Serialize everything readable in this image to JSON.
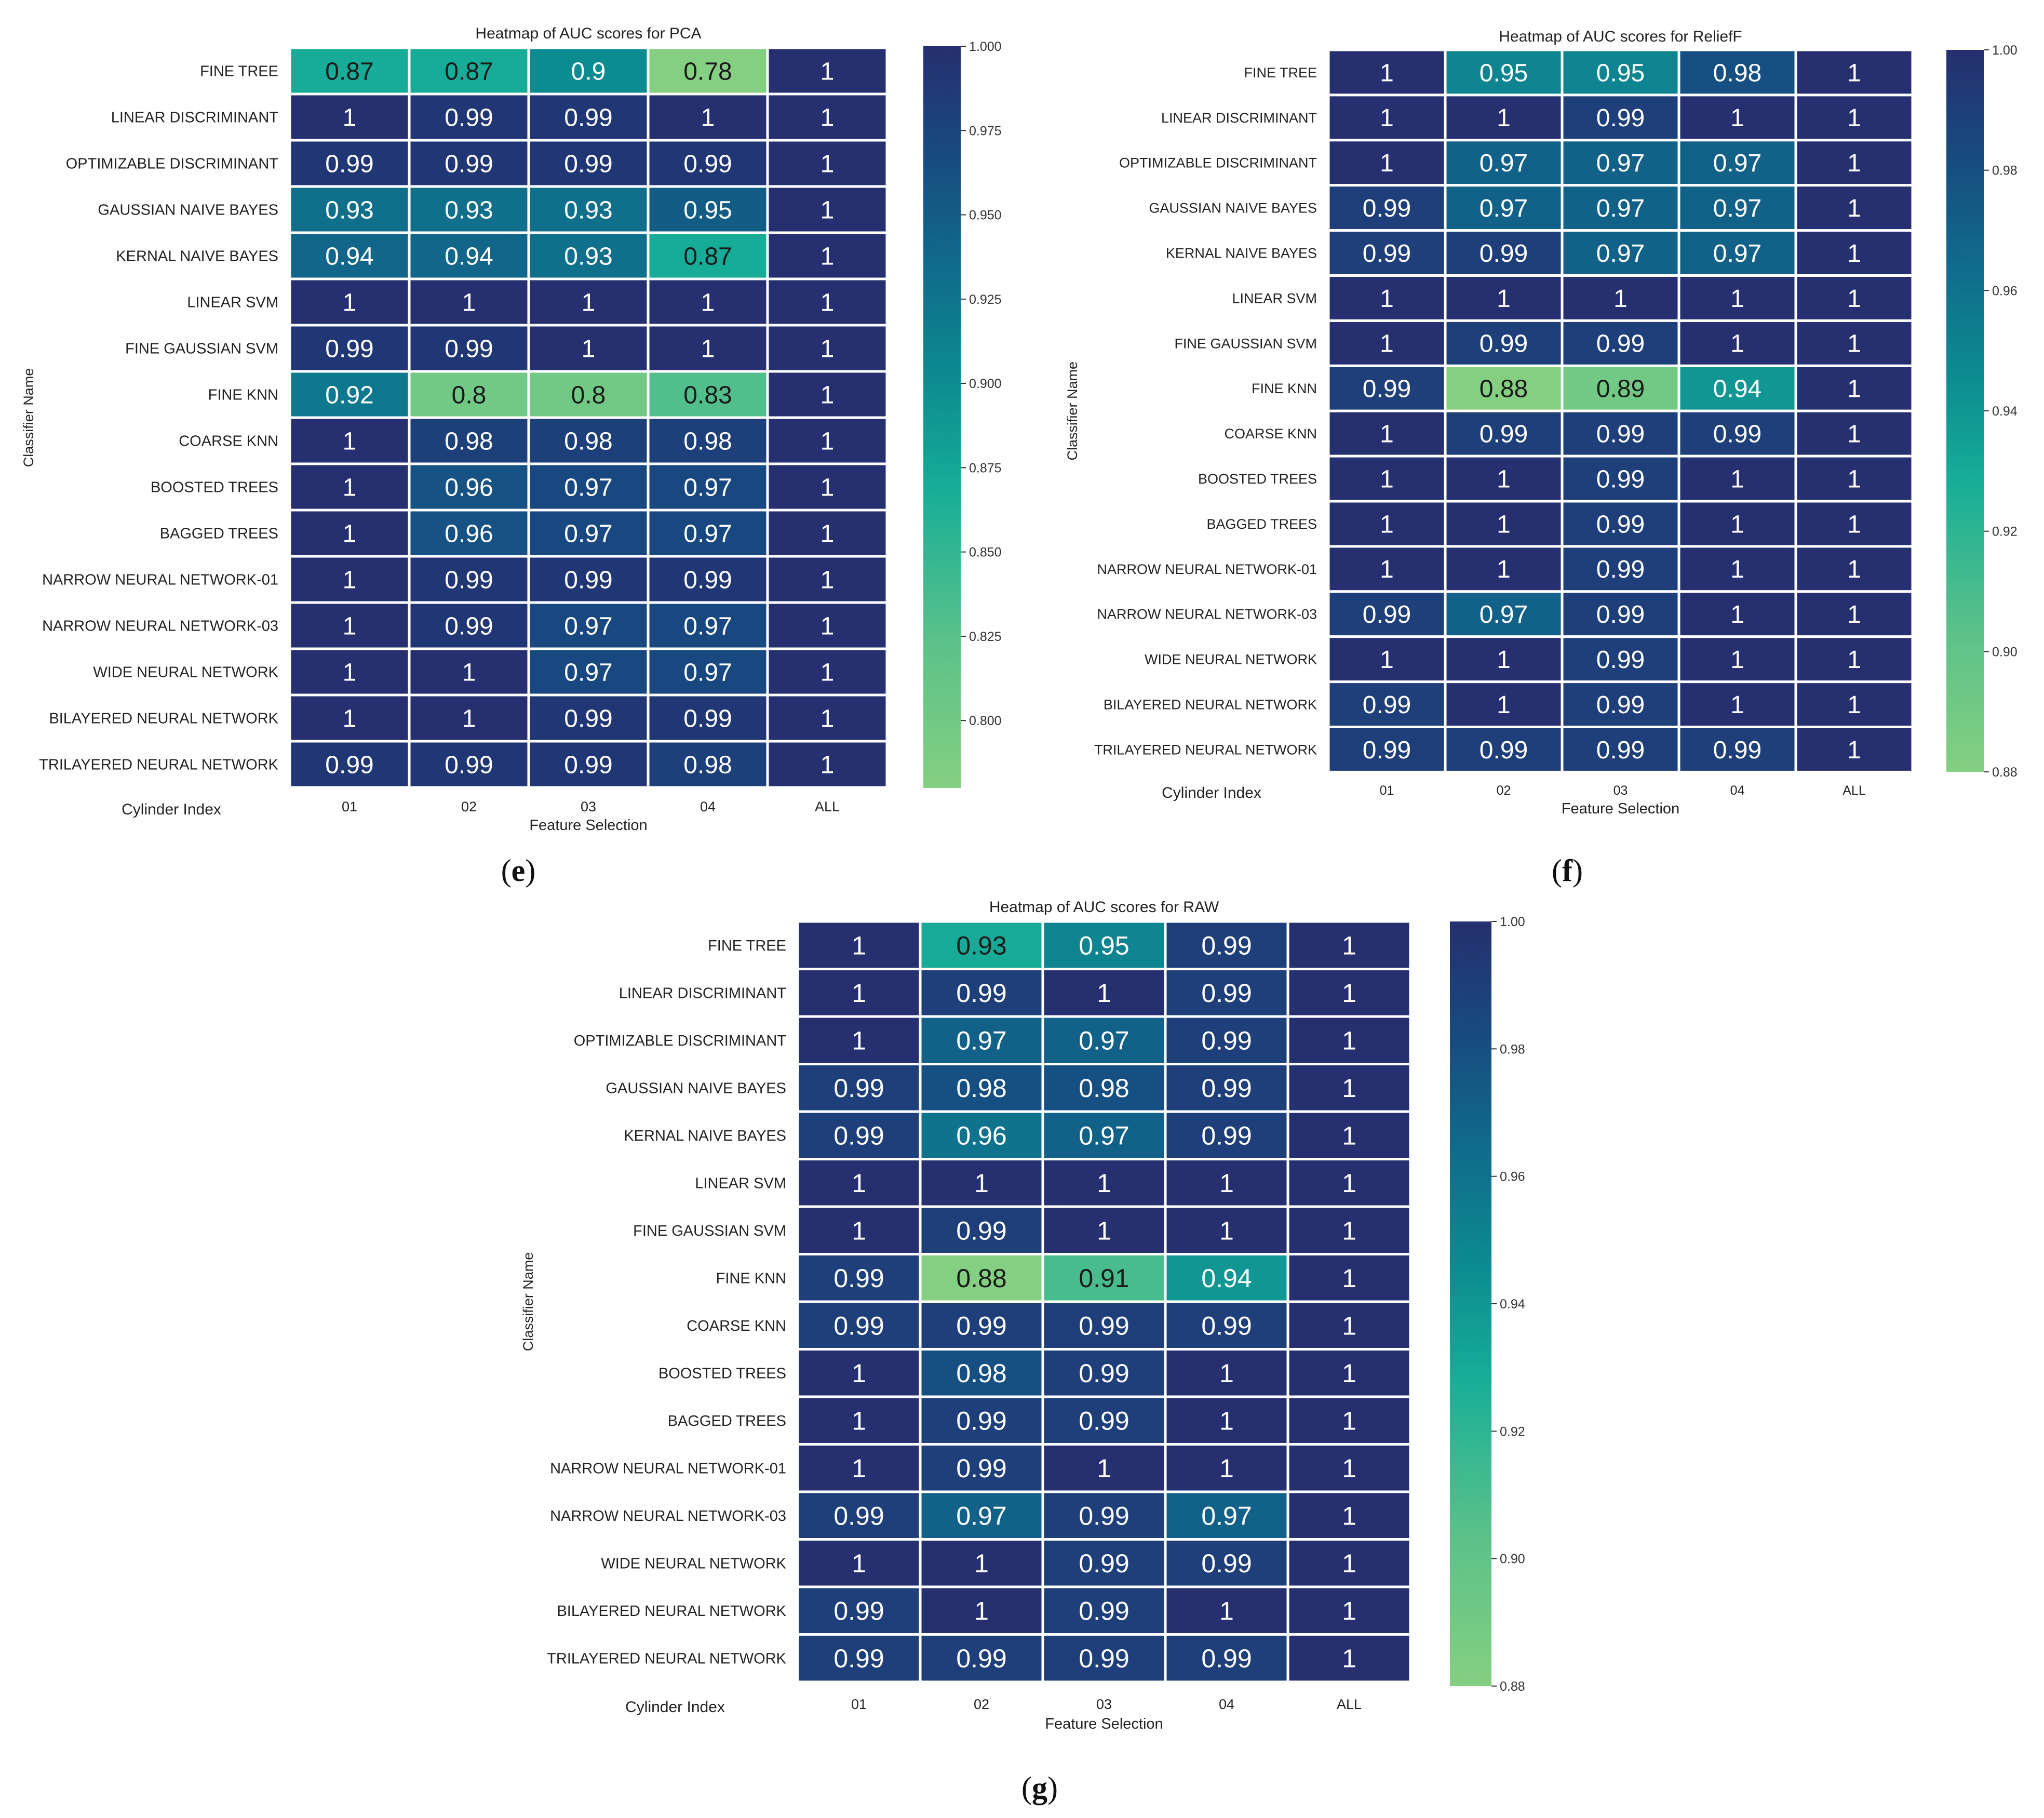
{
  "figure": {
    "panel_labels": [
      "(e)",
      "(f)",
      "(g)"
    ]
  },
  "chart_data": [
    {
      "type": "heatmap",
      "panel": "(e)",
      "title": "Heatmap of AUC scores for PCA",
      "xlabel": "Feature Selection",
      "ylabel": "Classifier Name",
      "corner_label": "Cylinder Index",
      "x_categories": [
        "01",
        "02",
        "03",
        "04",
        "ALL"
      ],
      "y_categories": [
        "FINE TREE",
        "LINEAR DISCRIMINANT",
        "OPTIMIZABLE DISCRIMINANT",
        "GAUSSIAN NAIVE BAYES",
        "KERNAL NAIVE BAYES",
        "LINEAR SVM",
        "FINE GAUSSIAN SVM",
        "FINE KNN",
        "COARSE KNN",
        "BOOSTED TREES",
        "BAGGED TREES",
        "NARROW NEURAL NETWORK-01",
        "NARROW NEURAL NETWORK-03",
        "WIDE NEURAL NETWORK",
        "BILAYERED NEURAL NETWORK",
        "TRILAYERED NEURAL NETWORK"
      ],
      "values": [
        [
          0.87,
          0.87,
          0.9,
          0.78,
          1
        ],
        [
          1,
          0.99,
          0.99,
          1,
          1
        ],
        [
          0.99,
          0.99,
          0.99,
          0.99,
          1
        ],
        [
          0.93,
          0.93,
          0.93,
          0.95,
          1
        ],
        [
          0.94,
          0.94,
          0.93,
          0.87,
          1
        ],
        [
          1,
          1,
          1,
          1,
          1
        ],
        [
          0.99,
          0.99,
          1,
          1,
          1
        ],
        [
          0.92,
          0.8,
          0.8,
          0.83,
          1
        ],
        [
          1,
          0.98,
          0.98,
          0.98,
          1
        ],
        [
          1,
          0.96,
          0.97,
          0.97,
          1
        ],
        [
          1,
          0.96,
          0.97,
          0.97,
          1
        ],
        [
          1,
          0.99,
          0.99,
          0.99,
          1
        ],
        [
          1,
          0.99,
          0.97,
          0.97,
          1
        ],
        [
          1,
          1,
          0.97,
          0.97,
          1
        ],
        [
          1,
          1,
          0.99,
          0.99,
          1
        ],
        [
          0.99,
          0.99,
          0.99,
          0.98,
          1
        ]
      ],
      "cell_labels": [
        [
          "0.87",
          "0.87",
          "0.9",
          "0.78",
          "1"
        ],
        [
          "1",
          "0.99",
          "0.99",
          "1",
          "1"
        ],
        [
          "0.99",
          "0.99",
          "0.99",
          "0.99",
          "1"
        ],
        [
          "0.93",
          "0.93",
          "0.93",
          "0.95",
          "1"
        ],
        [
          "0.94",
          "0.94",
          "0.93",
          "0.87",
          "1"
        ],
        [
          "1",
          "1",
          "1",
          "1",
          "1"
        ],
        [
          "0.99",
          "0.99",
          "1",
          "1",
          "1"
        ],
        [
          "0.92",
          "0.8",
          "0.8",
          "0.83",
          "1"
        ],
        [
          "1",
          "0.98",
          "0.98",
          "0.98",
          "1"
        ],
        [
          "1",
          "0.96",
          "0.97",
          "0.97",
          "1"
        ],
        [
          "1",
          "0.96",
          "0.97",
          "0.97",
          "1"
        ],
        [
          "1",
          "0.99",
          "0.99",
          "0.99",
          "1"
        ],
        [
          "1",
          "0.99",
          "0.97",
          "0.97",
          "1"
        ],
        [
          "1",
          "1",
          "0.97",
          "0.97",
          "1"
        ],
        [
          "1",
          "1",
          "0.99",
          "0.99",
          "1"
        ],
        [
          "0.99",
          "0.99",
          "0.99",
          "0.98",
          "1"
        ]
      ],
      "colorbar": {
        "min": 0.78,
        "max": 1.0,
        "ticks": [
          1.0,
          0.975,
          0.95,
          0.925,
          0.9,
          0.875,
          0.85,
          0.825,
          0.8
        ],
        "tick_labels": [
          "1.000",
          "0.975",
          "0.950",
          "0.925",
          "0.900",
          "0.875",
          "0.850",
          "0.825",
          "0.800"
        ]
      }
    },
    {
      "type": "heatmap",
      "panel": "(f)",
      "title": "Heatmap of AUC scores for ReliefF",
      "xlabel": "Feature Selection",
      "ylabel": "Classifier Name",
      "corner_label": "Cylinder Index",
      "x_categories": [
        "01",
        "02",
        "03",
        "04",
        "ALL"
      ],
      "y_categories": [
        "FINE TREE",
        "LINEAR DISCRIMINANT",
        "OPTIMIZABLE DISCRIMINANT",
        "GAUSSIAN NAIVE BAYES",
        "KERNAL NAIVE BAYES",
        "LINEAR SVM",
        "FINE GAUSSIAN SVM",
        "FINE KNN",
        "COARSE KNN",
        "BOOSTED TREES",
        "BAGGED TREES",
        "NARROW NEURAL NETWORK-01",
        "NARROW NEURAL NETWORK-03",
        "WIDE NEURAL NETWORK",
        "BILAYERED NEURAL NETWORK",
        "TRILAYERED NEURAL NETWORK"
      ],
      "values": [
        [
          1,
          0.95,
          0.95,
          0.98,
          1
        ],
        [
          1,
          1,
          0.99,
          1,
          1
        ],
        [
          1,
          0.97,
          0.97,
          0.97,
          1
        ],
        [
          0.99,
          0.97,
          0.97,
          0.97,
          1
        ],
        [
          0.99,
          0.99,
          0.97,
          0.97,
          1
        ],
        [
          1,
          1,
          1,
          1,
          1
        ],
        [
          1,
          0.99,
          0.99,
          1,
          1
        ],
        [
          0.99,
          0.88,
          0.89,
          0.94,
          1
        ],
        [
          1,
          0.99,
          0.99,
          0.99,
          1
        ],
        [
          1,
          1,
          0.99,
          1,
          1
        ],
        [
          1,
          1,
          0.99,
          1,
          1
        ],
        [
          1,
          1,
          0.99,
          1,
          1
        ],
        [
          0.99,
          0.97,
          0.99,
          1,
          1
        ],
        [
          1,
          1,
          0.99,
          1,
          1
        ],
        [
          0.99,
          1,
          0.99,
          1,
          1
        ],
        [
          0.99,
          0.99,
          0.99,
          0.99,
          1
        ]
      ],
      "cell_labels": [
        [
          "1",
          "0.95",
          "0.95",
          "0.98",
          "1"
        ],
        [
          "1",
          "1",
          "0.99",
          "1",
          "1"
        ],
        [
          "1",
          "0.97",
          "0.97",
          "0.97",
          "1"
        ],
        [
          "0.99",
          "0.97",
          "0.97",
          "0.97",
          "1"
        ],
        [
          "0.99",
          "0.99",
          "0.97",
          "0.97",
          "1"
        ],
        [
          "1",
          "1",
          "1",
          "1",
          "1"
        ],
        [
          "1",
          "0.99",
          "0.99",
          "1",
          "1"
        ],
        [
          "0.99",
          "0.88",
          "0.89",
          "0.94",
          "1"
        ],
        [
          "1",
          "0.99",
          "0.99",
          "0.99",
          "1"
        ],
        [
          "1",
          "1",
          "0.99",
          "1",
          "1"
        ],
        [
          "1",
          "1",
          "0.99",
          "1",
          "1"
        ],
        [
          "1",
          "1",
          "0.99",
          "1",
          "1"
        ],
        [
          "0.99",
          "0.97",
          "0.99",
          "1",
          "1"
        ],
        [
          "1",
          "1",
          "0.99",
          "1",
          "1"
        ],
        [
          "0.99",
          "1",
          "0.99",
          "1",
          "1"
        ],
        [
          "0.99",
          "0.99",
          "0.99",
          "0.99",
          "1"
        ]
      ],
      "colorbar": {
        "min": 0.88,
        "max": 1.0,
        "ticks": [
          1.0,
          0.98,
          0.96,
          0.94,
          0.92,
          0.9,
          0.88
        ],
        "tick_labels": [
          "1.00",
          "0.98",
          "0.96",
          "0.94",
          "0.92",
          "0.90",
          "0.88"
        ]
      }
    },
    {
      "type": "heatmap",
      "panel": "(g)",
      "title": "Heatmap of AUC scores for RAW",
      "xlabel": "Feature Selection",
      "ylabel": "Classifier Name",
      "corner_label": "Cylinder Index",
      "x_categories": [
        "01",
        "02",
        "03",
        "04",
        "ALL"
      ],
      "y_categories": [
        "FINE TREE",
        "LINEAR DISCRIMINANT",
        "OPTIMIZABLE DISCRIMINANT",
        "GAUSSIAN NAIVE BAYES",
        "KERNAL NAIVE BAYES",
        "LINEAR SVM",
        "FINE GAUSSIAN SVM",
        "FINE KNN",
        "COARSE KNN",
        "BOOSTED TREES",
        "BAGGED TREES",
        "NARROW NEURAL NETWORK-01",
        "NARROW NEURAL NETWORK-03",
        "WIDE NEURAL NETWORK",
        "BILAYERED NEURAL NETWORK",
        "TRILAYERED NEURAL NETWORK"
      ],
      "values": [
        [
          1,
          0.93,
          0.95,
          0.99,
          1
        ],
        [
          1,
          0.99,
          1,
          0.99,
          1
        ],
        [
          1,
          0.97,
          0.97,
          0.99,
          1
        ],
        [
          0.99,
          0.98,
          0.98,
          0.99,
          1
        ],
        [
          0.99,
          0.96,
          0.97,
          0.99,
          1
        ],
        [
          1,
          1,
          1,
          1,
          1
        ],
        [
          1,
          0.99,
          1,
          1,
          1
        ],
        [
          0.99,
          0.88,
          0.91,
          0.94,
          1
        ],
        [
          0.99,
          0.99,
          0.99,
          0.99,
          1
        ],
        [
          1,
          0.98,
          0.99,
          1,
          1
        ],
        [
          1,
          0.99,
          0.99,
          1,
          1
        ],
        [
          1,
          0.99,
          1,
          1,
          1
        ],
        [
          0.99,
          0.97,
          0.99,
          0.97,
          1
        ],
        [
          1,
          1,
          0.99,
          0.99,
          1
        ],
        [
          0.99,
          1,
          0.99,
          1,
          1
        ],
        [
          0.99,
          0.99,
          0.99,
          0.99,
          1
        ]
      ],
      "cell_labels": [
        [
          "1",
          "0.93",
          "0.95",
          "0.99",
          "1"
        ],
        [
          "1",
          "0.99",
          "1",
          "0.99",
          "1"
        ],
        [
          "1",
          "0.97",
          "0.97",
          "0.99",
          "1"
        ],
        [
          "0.99",
          "0.98",
          "0.98",
          "0.99",
          "1"
        ],
        [
          "0.99",
          "0.96",
          "0.97",
          "0.99",
          "1"
        ],
        [
          "1",
          "1",
          "1",
          "1",
          "1"
        ],
        [
          "1",
          "0.99",
          "1",
          "1",
          "1"
        ],
        [
          "0.99",
          "0.88",
          "0.91",
          "0.94",
          "1"
        ],
        [
          "0.99",
          "0.99",
          "0.99",
          "0.99",
          "1"
        ],
        [
          "1",
          "0.98",
          "0.99",
          "1",
          "1"
        ],
        [
          "1",
          "0.99",
          "0.99",
          "1",
          "1"
        ],
        [
          "1",
          "0.99",
          "1",
          "1",
          "1"
        ],
        [
          "0.99",
          "0.97",
          "0.99",
          "0.97",
          "1"
        ],
        [
          "1",
          "1",
          "0.99",
          "0.99",
          "1"
        ],
        [
          "0.99",
          "1",
          "0.99",
          "1",
          "1"
        ],
        [
          "0.99",
          "0.99",
          "0.99",
          "0.99",
          "1"
        ]
      ],
      "colorbar": {
        "min": 0.88,
        "max": 1.0,
        "ticks": [
          1.0,
          0.98,
          0.96,
          0.94,
          0.92,
          0.9,
          0.88
        ],
        "tick_labels": [
          "1.00",
          "0.98",
          "0.96",
          "0.94",
          "0.92",
          "0.90",
          "0.88"
        ]
      }
    }
  ]
}
